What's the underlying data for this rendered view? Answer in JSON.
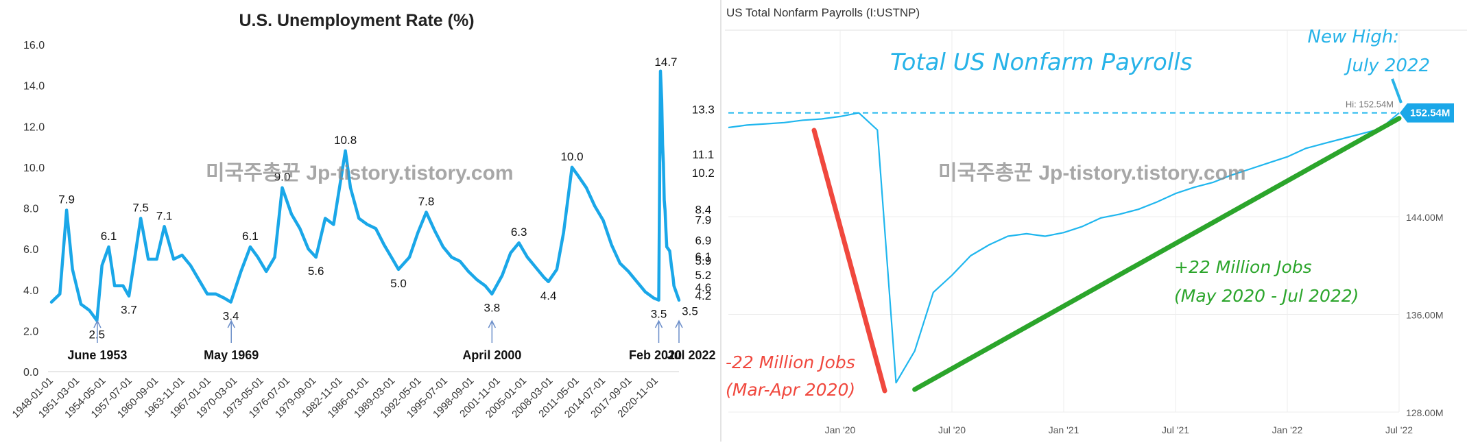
{
  "left_chart": {
    "title": "U.S. Unemployment Rate (%)",
    "watermark": "미국주총꾼 Jp-tistory.tistory.com",
    "y_tick_labels": [
      "0.0",
      "2.0",
      "4.0",
      "6.0",
      "8.0",
      "10.0",
      "12.0",
      "14.0",
      "16.0"
    ],
    "x_tick_labels": [
      "1948-01-01",
      "1951-03-01",
      "1954-05-01",
      "1957-07-01",
      "1960-09-01",
      "1963-11-01",
      "1967-01-01",
      "1970-03-01",
      "1973-05-01",
      "1976-07-01",
      "1979-09-01",
      "1982-11-01",
      "1986-01-01",
      "1989-03-01",
      "1992-05-01",
      "1995-07-01",
      "1998-09-01",
      "2001-11-01",
      "2005-01-01",
      "2008-03-01",
      "2011-05-01",
      "2014-07-01",
      "2017-09-01",
      "2020-11-01"
    ],
    "peak_labels": [
      {
        "text": "7.9",
        "year": 1949.8,
        "value": 7.9
      },
      {
        "text": "2.5",
        "year": 1953.4,
        "value": 2.5
      },
      {
        "text": "6.1",
        "year": 1954.8,
        "value": 6.1
      },
      {
        "text": "3.7",
        "year": 1957.2,
        "value": 3.7
      },
      {
        "text": "7.5",
        "year": 1958.6,
        "value": 7.5
      },
      {
        "text": "7.1",
        "year": 1961.4,
        "value": 7.1
      },
      {
        "text": "3.4",
        "year": 1969.3,
        "value": 3.4
      },
      {
        "text": "6.1",
        "year": 1971.6,
        "value": 6.1
      },
      {
        "text": "9.0",
        "year": 1975.4,
        "value": 9.0
      },
      {
        "text": "5.6",
        "year": 1979.4,
        "value": 5.6
      },
      {
        "text": "10.8",
        "year": 1982.9,
        "value": 10.8
      },
      {
        "text": "5.0",
        "year": 1989.2,
        "value": 5.0
      },
      {
        "text": "7.8",
        "year": 1992.5,
        "value": 7.8
      },
      {
        "text": "3.8",
        "year": 2000.3,
        "value": 3.8
      },
      {
        "text": "6.3",
        "year": 2003.5,
        "value": 6.3
      },
      {
        "text": "4.4",
        "year": 2007.0,
        "value": 4.4
      },
      {
        "text": "10.0",
        "year": 2009.8,
        "value": 10.0
      },
      {
        "text": "3.5",
        "year": 2020.1,
        "value": 3.5
      },
      {
        "text": "14.7",
        "year": 2020.3,
        "value": 14.7
      },
      {
        "text": "13.3",
        "year": 2020.45,
        "value": 13.3
      },
      {
        "text": "11.1",
        "year": 2020.55,
        "value": 11.1
      },
      {
        "text": "10.2",
        "year": 2020.65,
        "value": 10.2
      },
      {
        "text": "8.4",
        "year": 2020.75,
        "value": 8.4
      },
      {
        "text": "7.9",
        "year": 2020.85,
        "value": 7.9
      },
      {
        "text": "6.9",
        "year": 2020.95,
        "value": 6.9
      },
      {
        "text": "6.1",
        "year": 2021.05,
        "value": 6.1
      },
      {
        "text": "5.9",
        "year": 2021.4,
        "value": 5.9
      },
      {
        "text": "5.2",
        "year": 2021.6,
        "value": 5.2
      },
      {
        "text": "4.6",
        "year": 2021.8,
        "value": 4.6
      },
      {
        "text": "4.2",
        "year": 2021.9,
        "value": 4.2
      },
      {
        "text": "3.5",
        "year": 2022.5,
        "value": 3.5
      }
    ],
    "annotations": [
      {
        "text": "June 1953",
        "year": 1953.45
      },
      {
        "text": "May 1969",
        "year": 1969.35
      },
      {
        "text": "April 2000",
        "year": 2000.3
      },
      {
        "text": "Feb 2020",
        "year": 2020.1
      },
      {
        "text": "Jul 2022",
        "year": 2022.5
      }
    ],
    "line_color": "#1aa7e8"
  },
  "right_chart": {
    "header": "US Total Nonfarm Payrolls (I:USTNP)",
    "title": "Total US Nonfarm Payrolls",
    "watermark": "미국주총꾼 Jp-tistory.tistory.com",
    "new_high_label_line1": "New High:",
    "new_high_label_line2": "July 2022",
    "hi_label": "Hi: 152.54M",
    "last_value_label": "152.54M",
    "y_tick_labels": [
      "128.00M",
      "136.00M",
      "144.00M"
    ],
    "x_tick_labels": [
      "Jan '20",
      "Jul '20",
      "Jan '21",
      "Jul '21",
      "Jan '22",
      "Jul '22"
    ],
    "loss_label_line1": "-22 Million Jobs",
    "loss_label_line2": "(Mar-Apr 2020)",
    "gain_label_line1": "+22 Million Jobs",
    "gain_label_line2": "(May 2020 - Jul 2022)",
    "colors": {
      "line": "#1fb6ee",
      "loss": "#f0483e",
      "gain": "#2ba52b",
      "title": "#27b3e8",
      "value_badge": "#1aa7e8"
    }
  },
  "chart_data": [
    {
      "type": "line",
      "title": "U.S. Unemployment Rate (%)",
      "xlabel": "",
      "ylabel": "",
      "ylim": [
        0,
        16
      ],
      "xlim": [
        1948.0,
        2022.5
      ],
      "grid": false,
      "series": [
        {
          "x": [
            1948.0,
            1949.0,
            1949.8,
            1950.5,
            1951.5,
            1952.5,
            1953.4,
            1954.0,
            1954.8,
            1955.5,
            1956.5,
            1957.2,
            1958.6,
            1959.5,
            1960.5,
            1961.4,
            1962.5,
            1963.5,
            1964.5,
            1965.5,
            1966.5,
            1967.5,
            1968.5,
            1969.3,
            1970.5,
            1971.6,
            1972.5,
            1973.5,
            1974.5,
            1975.4,
            1976.5,
            1977.5,
            1978.5,
            1979.4,
            1980.5,
            1981.5,
            1982.9,
            1983.5,
            1984.5,
            1985.5,
            1986.5,
            1987.5,
            1988.5,
            1989.2,
            1990.5,
            1991.5,
            1992.5,
            1993.5,
            1994.5,
            1995.5,
            1996.5,
            1997.5,
            1998.5,
            1999.5,
            2000.3,
            2001.5,
            2002.5,
            2003.5,
            2004.5,
            2005.5,
            2006.5,
            2007.0,
            2008.0,
            2008.8,
            2009.8,
            2010.5,
            2011.5,
            2012.5,
            2013.5,
            2014.5,
            2015.5,
            2016.5,
            2017.5,
            2018.5,
            2019.5,
            2020.1,
            2020.3,
            2020.45,
            2020.55,
            2020.65,
            2020.75,
            2020.85,
            2020.95,
            2021.05,
            2021.4,
            2021.6,
            2021.8,
            2021.9,
            2022.5
          ],
          "y": [
            3.4,
            3.8,
            7.9,
            5.0,
            3.3,
            3.0,
            2.5,
            5.2,
            6.1,
            4.2,
            4.2,
            3.7,
            7.5,
            5.5,
            5.5,
            7.1,
            5.5,
            5.7,
            5.2,
            4.5,
            3.8,
            3.8,
            3.6,
            3.4,
            4.9,
            6.1,
            5.6,
            4.9,
            5.6,
            9.0,
            7.7,
            7.0,
            6.0,
            5.6,
            7.5,
            7.2,
            10.8,
            9.0,
            7.5,
            7.2,
            7.0,
            6.2,
            5.5,
            5.0,
            5.6,
            6.8,
            7.8,
            6.9,
            6.1,
            5.6,
            5.4,
            4.9,
            4.5,
            4.2,
            3.8,
            4.7,
            5.8,
            6.3,
            5.6,
            5.1,
            4.6,
            4.4,
            5.0,
            6.8,
            10.0,
            9.6,
            9.0,
            8.1,
            7.4,
            6.2,
            5.3,
            4.9,
            4.4,
            3.9,
            3.6,
            3.5,
            14.7,
            13.3,
            11.1,
            10.2,
            8.4,
            7.9,
            6.9,
            6.1,
            5.9,
            5.2,
            4.6,
            4.2,
            3.5
          ]
        }
      ]
    },
    {
      "type": "line",
      "title": "Total US Nonfarm Payrolls",
      "xlabel": "",
      "ylabel": "",
      "ylim": [
        128.0,
        154.0
      ],
      "grid": true,
      "x": [
        "2019-07",
        "2019-08",
        "2019-09",
        "2019-10",
        "2019-11",
        "2019-12",
        "2020-01",
        "2020-02",
        "2020-03",
        "2020-04",
        "2020-05",
        "2020-06",
        "2020-07",
        "2020-08",
        "2020-09",
        "2020-10",
        "2020-11",
        "2020-12",
        "2021-01",
        "2021-02",
        "2021-03",
        "2021-04",
        "2021-05",
        "2021-06",
        "2021-07",
        "2021-08",
        "2021-09",
        "2021-10",
        "2021-11",
        "2021-12",
        "2022-01",
        "2022-02",
        "2022-03",
        "2022-04",
        "2022-05",
        "2022-06",
        "2022-07"
      ],
      "series": [
        {
          "name": "US Total Nonfarm Payrolls (I:USTNP)",
          "values": [
            151.3,
            151.5,
            151.6,
            151.7,
            151.9,
            152.0,
            152.2,
            152.5,
            151.1,
            130.4,
            133.0,
            137.8,
            139.2,
            140.8,
            141.7,
            142.4,
            142.6,
            142.4,
            142.7,
            143.2,
            143.9,
            144.2,
            144.6,
            145.2,
            145.9,
            146.4,
            146.8,
            147.4,
            147.9,
            148.4,
            148.9,
            149.6,
            150.0,
            150.4,
            150.8,
            151.2,
            152.5
          ]
        }
      ],
      "annotations": [
        "-22 Million Jobs (Mar-Apr 2020)",
        "+22 Million Jobs (May 2020 - Jul 2022)",
        "New High: July 2022",
        "Hi: 152.54M"
      ]
    }
  ]
}
